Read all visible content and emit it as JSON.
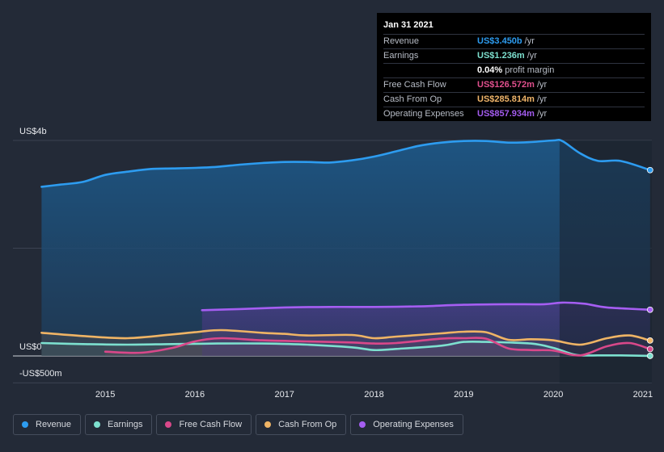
{
  "tooltip": {
    "date": "Jan 31 2021",
    "rows": [
      {
        "label": "Revenue",
        "value": "US$3.450b",
        "unit": "/yr",
        "color": "#2d9cf0"
      },
      {
        "label": "Earnings",
        "value": "US$1.236m",
        "unit": "/yr",
        "color": "#7de0cf"
      },
      {
        "label": "",
        "value": "0.04%",
        "unit": "profit margin",
        "color": "#ffffff"
      },
      {
        "label": "Free Cash Flow",
        "value": "US$126.572m",
        "unit": "/yr",
        "color": "#e0508d"
      },
      {
        "label": "Cash From Op",
        "value": "US$285.814m",
        "unit": "/yr",
        "color": "#f0b56a"
      },
      {
        "label": "Operating Expenses",
        "value": "US$857.934m",
        "unit": "/yr",
        "color": "#a45cf0"
      }
    ]
  },
  "legend": [
    {
      "label": "Revenue",
      "color": "#2d9cf0"
    },
    {
      "label": "Earnings",
      "color": "#7de0cf"
    },
    {
      "label": "Free Cash Flow",
      "color": "#d9488a"
    },
    {
      "label": "Cash From Op",
      "color": "#efb465"
    },
    {
      "label": "Operating Expenses",
      "color": "#a55ef2"
    }
  ],
  "chart_data": {
    "type": "area",
    "title": "",
    "ylabel_top": "US$4b",
    "ylabel_zero": "US$0",
    "ylabel_bottom": "-US$500m",
    "ylim": [
      -500,
      4000
    ],
    "xlim": [
      2014.25,
      2021.1
    ],
    "x_ticks": [
      "2015",
      "2016",
      "2017",
      "2018",
      "2019",
      "2020",
      "2021"
    ],
    "x_tick_values": [
      2015,
      2016,
      2017,
      2018,
      2019,
      2020,
      2021
    ],
    "forecast_start": 2020.07,
    "series": [
      {
        "name": "Revenue",
        "color": "#2d9cf0",
        "x": [
          2014.29,
          2014.5,
          2014.75,
          2015.0,
          2015.25,
          2015.5,
          2015.75,
          2016.0,
          2016.25,
          2016.5,
          2016.75,
          2017.0,
          2017.25,
          2017.5,
          2017.75,
          2018.0,
          2018.25,
          2018.5,
          2018.75,
          2019.0,
          2019.25,
          2019.5,
          2019.75,
          2020.0,
          2020.1,
          2020.3,
          2020.5,
          2020.75,
          2021.08
        ],
        "y": [
          3140,
          3180,
          3230,
          3360,
          3420,
          3470,
          3480,
          3490,
          3510,
          3550,
          3580,
          3600,
          3600,
          3590,
          3630,
          3700,
          3800,
          3900,
          3960,
          3990,
          3990,
          3960,
          3970,
          4000,
          3990,
          3760,
          3620,
          3620,
          3450
        ]
      },
      {
        "name": "Earnings",
        "color": "#7de0cf",
        "x": [
          2014.29,
          2014.75,
          2015.25,
          2015.75,
          2016.25,
          2016.75,
          2017.25,
          2017.75,
          2018.0,
          2018.25,
          2018.75,
          2019.0,
          2019.25,
          2019.75,
          2020.0,
          2020.25,
          2020.5,
          2020.75,
          2021.08
        ],
        "y": [
          240,
          220,
          210,
          220,
          230,
          230,
          210,
          160,
          110,
          130,
          190,
          260,
          260,
          230,
          150,
          20,
          10,
          10,
          1.2
        ]
      },
      {
        "name": "Free Cash Flow",
        "color": "#d9488a",
        "x": [
          2015.0,
          2015.4,
          2015.75,
          2016.0,
          2016.3,
          2016.75,
          2017.25,
          2017.75,
          2018.0,
          2018.25,
          2018.75,
          2019.0,
          2019.25,
          2019.5,
          2019.75,
          2020.0,
          2020.3,
          2020.6,
          2020.85,
          2021.08
        ],
        "y": [
          80,
          60,
          150,
          270,
          330,
          290,
          270,
          250,
          230,
          240,
          320,
          330,
          320,
          140,
          110,
          100,
          10,
          180,
          240,
          127
        ]
      },
      {
        "name": "Cash From Op",
        "color": "#efb465",
        "x": [
          2014.29,
          2014.75,
          2015.25,
          2015.75,
          2016.0,
          2016.3,
          2016.75,
          2017.0,
          2017.25,
          2017.75,
          2018.0,
          2018.25,
          2018.75,
          2019.0,
          2019.25,
          2019.5,
          2019.75,
          2020.0,
          2020.3,
          2020.6,
          2020.85,
          2021.08
        ],
        "y": [
          430,
          370,
          330,
          400,
          440,
          480,
          430,
          410,
          380,
          390,
          330,
          360,
          420,
          450,
          440,
          300,
          310,
          290,
          210,
          330,
          380,
          286
        ]
      },
      {
        "name": "Operating Expenses",
        "color": "#a55ef2",
        "x": [
          2016.08,
          2016.5,
          2017.0,
          2017.5,
          2018.0,
          2018.5,
          2019.0,
          2019.5,
          2019.9,
          2020.1,
          2020.35,
          2020.6,
          2021.08
        ],
        "y": [
          850,
          870,
          900,
          910,
          910,
          920,
          950,
          960,
          960,
          990,
          970,
          900,
          858
        ]
      }
    ]
  }
}
